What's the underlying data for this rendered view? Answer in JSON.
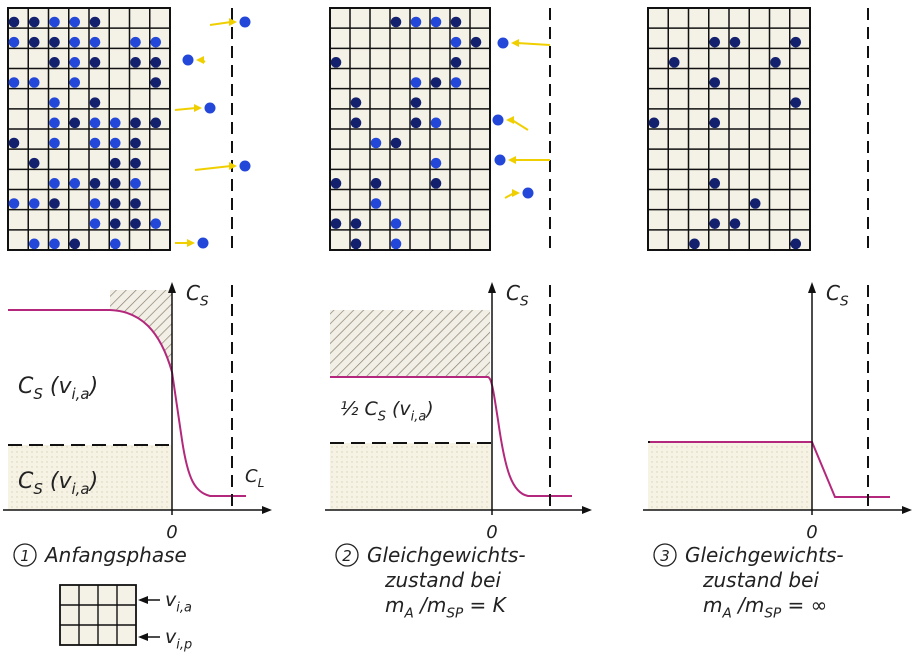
{
  "panels": [
    {
      "caption": {
        "number": "1",
        "lines": [
          [
            {
              "text": "Anfangsphase"
            }
          ]
        ]
      },
      "axis_label": [
        {
          "text": "C"
        },
        {
          "sub": "S"
        }
      ],
      "origin_label": "0",
      "labels": [
        [
          {
            "text": "C"
          },
          {
            "sub": "S"
          },
          {
            "text": " (v"
          },
          {
            "sub": "i,a"
          },
          {
            "text": ")"
          }
        ],
        [
          {
            "text": "C"
          },
          {
            "sub": "S"
          },
          {
            "text": " (v"
          },
          {
            "sub": "i,a"
          },
          {
            "text": ")"
          }
        ],
        [
          {
            "text": "C"
          },
          {
            "sub": "L"
          }
        ]
      ]
    },
    {
      "caption": {
        "number": "2",
        "lines": [
          [
            {
              "text": "Gleichgewichts-"
            }
          ],
          [
            {
              "text": "zustand bei"
            }
          ],
          [
            {
              "text": "m"
            },
            {
              "sub": "A"
            },
            {
              "text": " /m"
            },
            {
              "sub": "SP"
            },
            {
              "text": " = K"
            }
          ]
        ]
      },
      "axis_label": [
        {
          "text": "C"
        },
        {
          "sub": "S"
        }
      ],
      "origin_label": "0",
      "labels": [
        [
          {
            "text": "½ C"
          },
          {
            "sub": "S"
          },
          {
            "text": " (v"
          },
          {
            "sub": "i,a"
          },
          {
            "text": ")"
          }
        ]
      ]
    },
    {
      "caption": {
        "number": "3",
        "lines": [
          [
            {
              "text": "Gleichgewichts-"
            }
          ],
          [
            {
              "text": "zustand bei"
            }
          ],
          [
            {
              "text": "m"
            },
            {
              "sub": "A"
            },
            {
              "text": " /m"
            },
            {
              "sub": "SP"
            },
            {
              "text": " = ∞"
            }
          ]
        ]
      },
      "axis_label": [
        {
          "text": "C"
        },
        {
          "sub": "S"
        }
      ],
      "origin_label": "0",
      "labels": []
    }
  ],
  "legend": [
    [
      {
        "text": "v"
      },
      {
        "sub": "i,a"
      }
    ],
    [
      {
        "text": "v"
      },
      {
        "sub": "i,p"
      }
    ]
  ]
}
